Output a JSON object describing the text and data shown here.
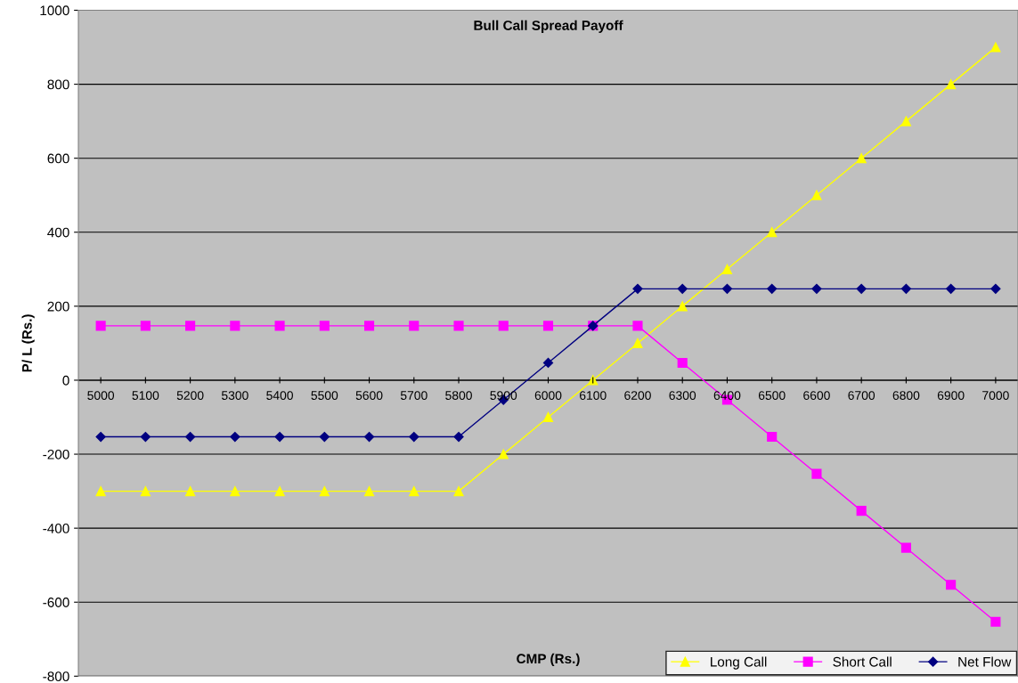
{
  "chart_data": {
    "type": "line",
    "title": "Bull Call Spread Payoff",
    "xlabel": "CMP (Rs.)",
    "ylabel": "P/ L (Rs.)",
    "categories": [
      "5000",
      "5100",
      "5200",
      "5300",
      "5400",
      "5500",
      "5600",
      "5700",
      "5800",
      "5900",
      "6000",
      "6100",
      "6200",
      "6300",
      "6400",
      "6500",
      "6600",
      "6700",
      "6800",
      "6900",
      "7000"
    ],
    "series": [
      {
        "name": "Long Call",
        "color": "#ffff00",
        "marker": "triangle",
        "values": [
          -300,
          -300,
          -300,
          -300,
          -300,
          -300,
          -300,
          -300,
          -300,
          -200,
          -100,
          0,
          100,
          200,
          300,
          400,
          500,
          600,
          700,
          800,
          900
        ]
      },
      {
        "name": "Short Call",
        "color": "#ff00ff",
        "marker": "square",
        "values": [
          147,
          147,
          147,
          147,
          147,
          147,
          147,
          147,
          147,
          147,
          147,
          147,
          147,
          47,
          -53,
          -153,
          -253,
          -353,
          -453,
          -553,
          -653
        ]
      },
      {
        "name": "Net Flow",
        "color": "#000080",
        "marker": "diamond",
        "values": [
          -153,
          -153,
          -153,
          -153,
          -153,
          -153,
          -153,
          -153,
          -153,
          -53,
          47,
          147,
          247,
          247,
          247,
          247,
          247,
          247,
          247,
          247,
          247
        ]
      }
    ],
    "ylim": [
      -800,
      1000
    ],
    "yticks": [
      -800,
      -600,
      -400,
      -200,
      0,
      200,
      400,
      600,
      800,
      1000
    ],
    "grid": "y",
    "legend": "bottom right",
    "line_style": "solid"
  }
}
